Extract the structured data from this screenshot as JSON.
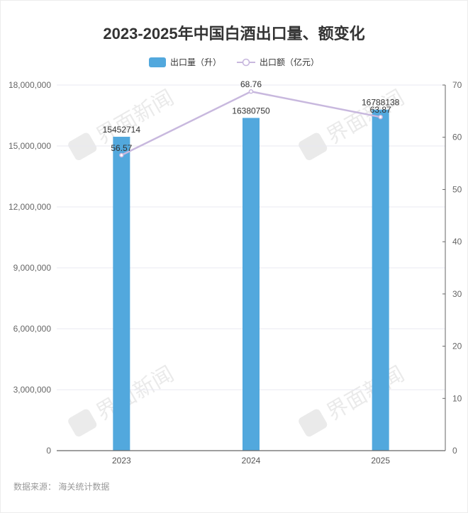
{
  "title": "2023-2025年中国白酒出口量、额变化",
  "legend": {
    "bar_label": "出口量（升）",
    "line_label": "出口额（亿元）"
  },
  "source": "数据来源： 海关统计数据",
  "watermark": "界面新闻",
  "colors": {
    "bar": "#52a8dd",
    "line": "#c8b8de",
    "grid": "#e8e8f2",
    "axis": "#666666"
  },
  "chart_data": {
    "type": "bar+line",
    "title": "2023-2025年中国白酒出口量、额变化",
    "categories": [
      "2023",
      "2024",
      "2025"
    ],
    "series": [
      {
        "name": "出口量（升）",
        "type": "bar",
        "axis": "left",
        "values": [
          15452714,
          16380750,
          16788138
        ]
      },
      {
        "name": "出口额（亿元）",
        "type": "line",
        "axis": "right",
        "values": [
          56.57,
          68.76,
          63.87
        ]
      }
    ],
    "y_left": {
      "ticks": [
        "0",
        "3,000,000",
        "6,000,000",
        "9,000,000",
        "12,000,000",
        "15,000,000",
        "18,000,000"
      ],
      "range": [
        0,
        18000000
      ]
    },
    "y_right": {
      "ticks": [
        "0",
        "10",
        "20",
        "30",
        "40",
        "50",
        "60",
        "70"
      ],
      "range": [
        0,
        70
      ]
    },
    "grid": true,
    "legend_position": "top"
  }
}
